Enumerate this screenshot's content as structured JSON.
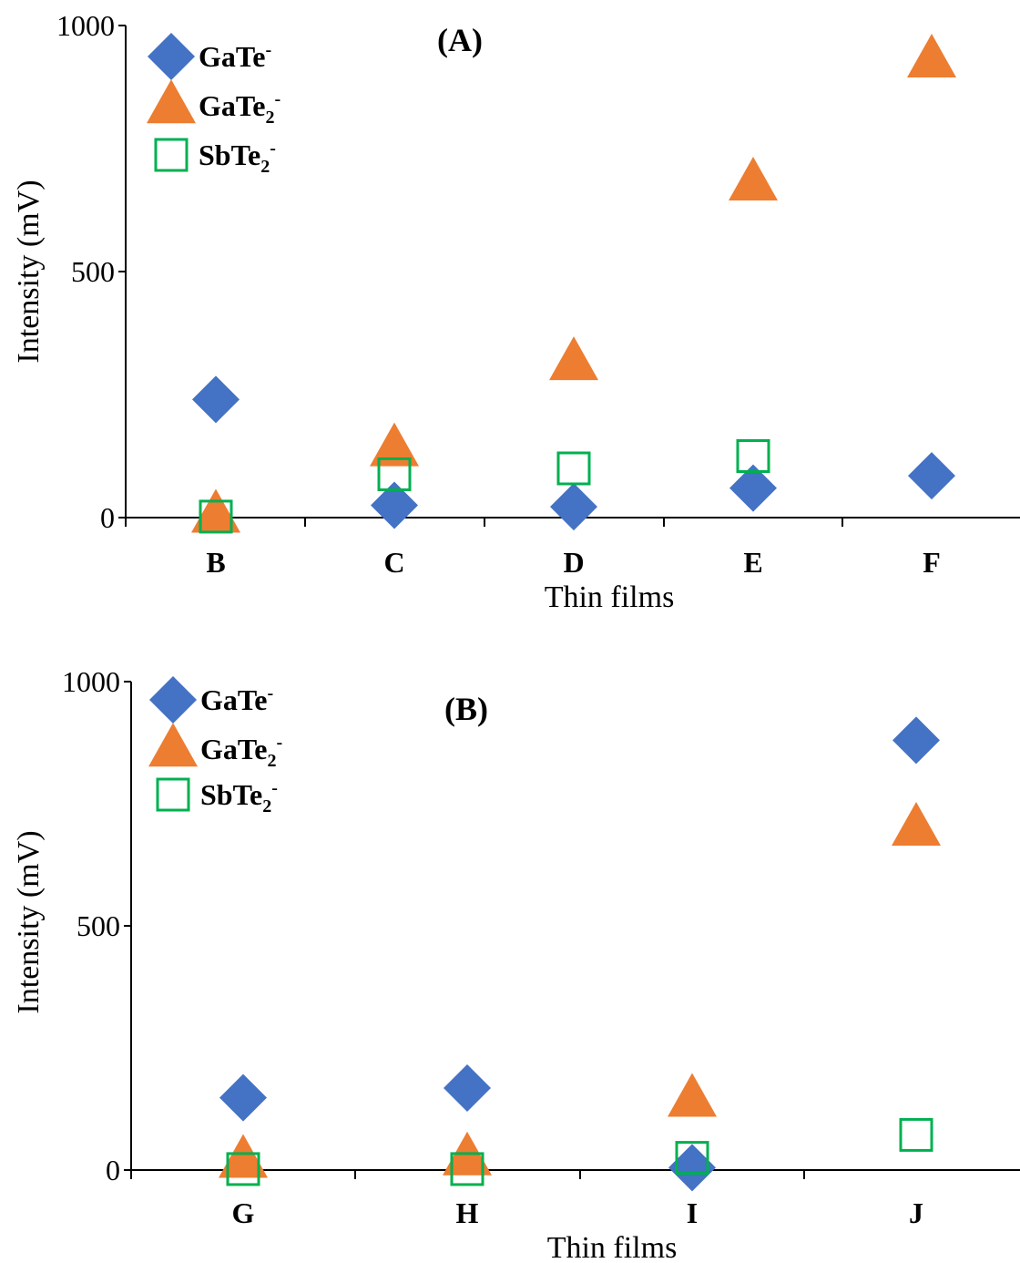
{
  "colors": {
    "GaTe": "#4472c4",
    "GaTe2": "#ed7d31",
    "SbTe2": "#00b050",
    "axis": "#000000"
  },
  "chart_data": [
    {
      "type": "scatter",
      "panel_label": "(A)",
      "xlabel": "Thin films",
      "ylabel": "Intensity (mV)",
      "ylim": [
        0,
        1000
      ],
      "yticks": [
        "0",
        "500",
        "1000"
      ],
      "categories": [
        "B",
        "C",
        "D",
        "E",
        "F"
      ],
      "legend_position": "top-left",
      "series": [
        {
          "key": "GaTe",
          "name": "GaTe",
          "sub": "",
          "sup": "-",
          "marker": "diamond",
          "values": [
            240,
            25,
            22,
            60,
            85
          ]
        },
        {
          "key": "GaTe2",
          "name": "GaTe",
          "sub": "2",
          "sup": "-",
          "marker": "triangle",
          "values": [
            5,
            140,
            315,
            680,
            930
          ]
        },
        {
          "key": "SbTe2",
          "name": "SbTe",
          "sub": "2",
          "sup": "-",
          "marker": "square",
          "values": [
            2,
            88,
            100,
            125,
            null
          ]
        }
      ]
    },
    {
      "type": "scatter",
      "panel_label": "(B)",
      "xlabel": "Thin films",
      "ylabel": "Intensity (mV)",
      "ylim": [
        0,
        1000
      ],
      "yticks": [
        "0",
        "500",
        "1000"
      ],
      "categories": [
        "G",
        "H",
        "I",
        "J"
      ],
      "legend_position": "top-left",
      "series": [
        {
          "key": "GaTe",
          "name": "GaTe",
          "sub": "",
          "sup": "-",
          "marker": "diamond",
          "values": [
            148,
            168,
            5,
            880
          ]
        },
        {
          "key": "GaTe2",
          "name": "GaTe",
          "sub": "2",
          "sup": "-",
          "marker": "triangle",
          "values": [
            20,
            25,
            145,
            700
          ]
        },
        {
          "key": "SbTe2",
          "name": "SbTe",
          "sub": "2",
          "sup": "-",
          "marker": "square",
          "values": [
            2,
            2,
            25,
            72
          ]
        }
      ]
    }
  ]
}
